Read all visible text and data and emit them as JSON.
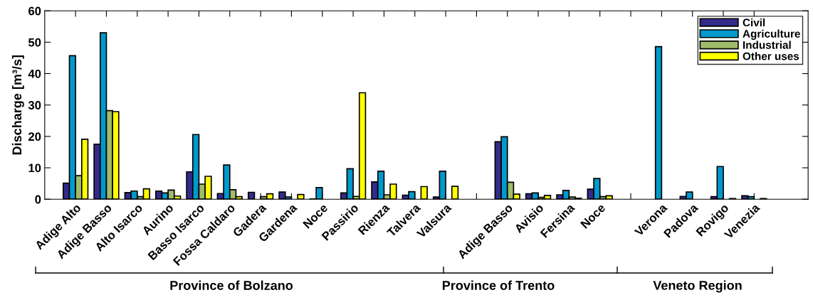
{
  "chart_data": {
    "type": "bar",
    "categories": [
      "Adige Alto",
      "Adige Basso",
      "Alto Isarco",
      "Aurino",
      "Basso Isarco",
      "Fossa Caldaro",
      "Gadera",
      "Gardena",
      "Noce",
      "Passirio",
      "Rienza",
      "Talvera",
      "Valsura",
      null,
      "Adige Basso",
      "Avisio",
      "Fersina",
      "Noce",
      null,
      "Verona",
      "Padova",
      "Rovigo",
      "Venezia"
    ],
    "series": [
      {
        "name": "Civil",
        "color": "#332b8a",
        "values": [
          5.1,
          17.5,
          2.1,
          2.6,
          8.7,
          1.8,
          2.2,
          2.3,
          0.1,
          2.0,
          5.5,
          1.3,
          0.7,
          null,
          18.3,
          1.7,
          1.4,
          3.2,
          null,
          null,
          0.9,
          0.8,
          1.1
        ]
      },
      {
        "name": "Agriculture",
        "color": "#0099cc",
        "values": [
          45.7,
          53.0,
          2.6,
          2.0,
          20.6,
          10.9,
          null,
          0.7,
          3.7,
          9.7,
          8.9,
          2.4,
          8.9,
          null,
          19.9,
          2.0,
          2.8,
          6.6,
          null,
          48.6,
          2.3,
          10.4,
          0.8
        ]
      },
      {
        "name": "Industrial",
        "color": "#a0bb6a",
        "values": [
          7.5,
          28.2,
          0.8,
          2.9,
          4.8,
          3.0,
          0.8,
          null,
          null,
          0.9,
          1.4,
          null,
          null,
          null,
          5.4,
          0.6,
          0.7,
          0.8,
          null,
          null,
          null,
          null,
          null
        ]
      },
      {
        "name": "Other uses",
        "color": "#ffff00",
        "values": [
          19.1,
          27.9,
          3.3,
          1.0,
          7.3,
          0.8,
          1.7,
          1.5,
          null,
          33.9,
          4.8,
          4.0,
          4.1,
          null,
          1.6,
          1.2,
          0.3,
          1.1,
          null,
          null,
          null,
          0.2,
          0.2
        ]
      }
    ],
    "ylabel": "Discharge [m³/s]",
    "ylim": [
      0,
      60
    ],
    "yticks": [
      0,
      10,
      20,
      30,
      40,
      50,
      60
    ],
    "grid": false,
    "legend": "top right",
    "annotations": [
      "Province of Bolzano",
      "Province of Trento",
      "Veneto Region"
    ]
  }
}
